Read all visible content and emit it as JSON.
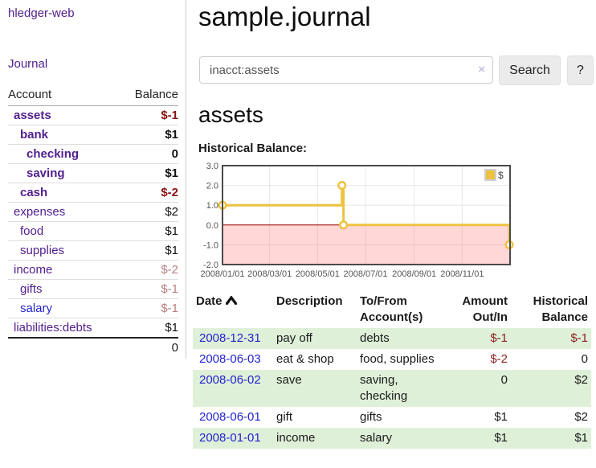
{
  "app": {
    "brand": "hledger-web",
    "nav_journal": "Journal"
  },
  "sidebar": {
    "headers": {
      "account": "Account",
      "balance": "Balance"
    },
    "accounts": [
      {
        "name": "assets",
        "indent": 1,
        "bold": true,
        "link": "purple",
        "balance": "$-1",
        "balance_style": "neg-strong"
      },
      {
        "name": "bank",
        "indent": 2,
        "bold": true,
        "link": "purple",
        "balance": "$1",
        "balance_style": "pos"
      },
      {
        "name": "checking",
        "indent": 3,
        "bold": true,
        "link": "purple",
        "balance": "0",
        "balance_style": "pos"
      },
      {
        "name": "saving",
        "indent": 3,
        "bold": true,
        "link": "purple",
        "balance": "$1",
        "balance_style": "pos"
      },
      {
        "name": "cash",
        "indent": 2,
        "bold": true,
        "link": "purple",
        "balance": "$-2",
        "balance_style": "neg-strong"
      },
      {
        "name": "expenses",
        "indent": 1,
        "bold": false,
        "link": "purple",
        "balance": "$2",
        "balance_style": "pos"
      },
      {
        "name": "food",
        "indent": 2,
        "bold": false,
        "link": "purple",
        "balance": "$1",
        "balance_style": "pos"
      },
      {
        "name": "supplies",
        "indent": 2,
        "bold": false,
        "link": "purple",
        "balance": "$1",
        "balance_style": "pos"
      },
      {
        "name": "income",
        "indent": 1,
        "bold": false,
        "link": "purple",
        "balance": "$-2",
        "balance_style": "neg-soft"
      },
      {
        "name": "gifts",
        "indent": 2,
        "bold": false,
        "link": "purple",
        "balance": "$-1",
        "balance_style": "neg-soft"
      },
      {
        "name": "salary",
        "indent": 2,
        "bold": false,
        "link": "blue",
        "balance": "$-1",
        "balance_style": "neg-soft"
      },
      {
        "name": "liabilities:debts",
        "indent": 1,
        "bold": false,
        "link": "purple",
        "balance": "$1",
        "balance_style": "pos"
      }
    ],
    "total": "0"
  },
  "header": {
    "title": "sample.journal"
  },
  "search": {
    "value": "inacct:assets",
    "clear_icon": "×",
    "search_button": "Search",
    "help_button": "?"
  },
  "account_page": {
    "heading": "assets",
    "chart_label": "Historical Balance:"
  },
  "chart_data": {
    "type": "line",
    "step": true,
    "series": [
      {
        "name": "$",
        "color": "#edc240",
        "points": [
          [
            "2008-01-01",
            1
          ],
          [
            "2008-06-01",
            2
          ],
          [
            "2008-06-03",
            0
          ],
          [
            "2008-12-31",
            -1
          ]
        ]
      }
    ],
    "x_range": [
      "2008-01-01",
      "2009-01-01"
    ],
    "x_ticks": [
      {
        "date": "2008-01-01",
        "label": "2008/01/01"
      },
      {
        "date": "2008-03-01",
        "label": "2008/03/01"
      },
      {
        "date": "2008-05-01",
        "label": "2008/05/01"
      },
      {
        "date": "2008-07-01",
        "label": "2008/07/01"
      },
      {
        "date": "2008-09-01",
        "label": "2008/09/01"
      },
      {
        "date": "2008-11-01",
        "label": "2008/11/01"
      }
    ],
    "y_ticks": [
      {
        "v": 3,
        "label": "3.0"
      },
      {
        "v": 2,
        "label": "2.0"
      },
      {
        "v": 1,
        "label": "1.0"
      },
      {
        "v": 0,
        "label": "0.0"
      },
      {
        "v": -1,
        "label": "-1.0"
      },
      {
        "v": -2,
        "label": "-2.0"
      }
    ],
    "ylim": [
      -2,
      3
    ],
    "legend": {
      "label": "$",
      "swatch_color": "#edc240",
      "position": "top-right"
    },
    "grid": true,
    "zero_line_color": "#990000",
    "negative_region_color": "rgba(255,110,110,0.28)"
  },
  "register": {
    "headers": {
      "date": "Date",
      "description": "Description",
      "tofrom": "To/From Account(s)",
      "amount": "Amount Out/In",
      "balance": "Historical Balance"
    },
    "sort": {
      "column": "date",
      "direction": "asc"
    },
    "rows": [
      {
        "date": "2008-12-31",
        "description": "pay off",
        "accounts": "debts",
        "amount": "$-1",
        "amount_neg": true,
        "balance": "$-1",
        "balance_neg": true,
        "shade": true
      },
      {
        "date": "2008-06-03",
        "description": "eat & shop",
        "accounts": "food, supplies",
        "amount": "$-2",
        "amount_neg": true,
        "balance": "0",
        "balance_neg": false,
        "shade": false
      },
      {
        "date": "2008-06-02",
        "description": "save",
        "accounts": "saving, checking",
        "amount": "0",
        "amount_neg": false,
        "balance": "$2",
        "balance_neg": false,
        "shade": true
      },
      {
        "date": "2008-06-01",
        "description": "gift",
        "accounts": "gifts",
        "amount": "$1",
        "amount_neg": false,
        "balance": "$2",
        "balance_neg": false,
        "shade": false
      },
      {
        "date": "2008-01-01",
        "description": "income",
        "accounts": "salary",
        "amount": "$1",
        "amount_neg": false,
        "balance": "$1",
        "balance_neg": false,
        "shade": true
      }
    ]
  }
}
